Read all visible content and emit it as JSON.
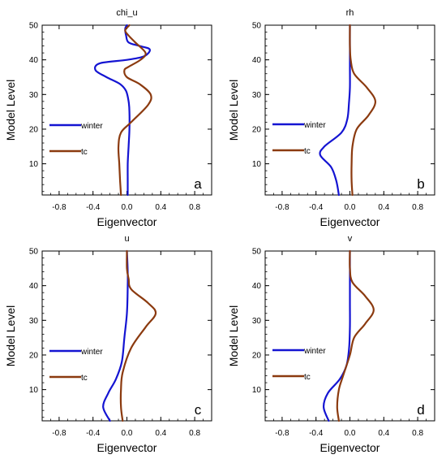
{
  "chart_data": [
    {
      "type": "line",
      "title": "chi_u",
      "panel_label": "a",
      "xlabel": "Eigenvector",
      "ylabel": "Model Level",
      "xlim": [
        -1.0,
        1.0
      ],
      "ylim": [
        1,
        50
      ],
      "xticks": [
        -0.8,
        -0.4,
        0.0,
        0.4,
        0.8
      ],
      "xticklabels": [
        "-0.8",
        "-0.4",
        "0.0",
        "0.4",
        "0.8"
      ],
      "yticks": [
        10,
        20,
        30,
        40,
        50
      ],
      "yticklabels": [
        "10",
        "20",
        "30",
        "40",
        "50"
      ],
      "legend_position": "left",
      "grid": false,
      "series": [
        {
          "name": "winter",
          "color": "#1414d2",
          "points": [
            [
              0.01,
              1
            ],
            [
              0.01,
              5
            ],
            [
              0.01,
              10
            ],
            [
              0.02,
              15
            ],
            [
              0.03,
              20
            ],
            [
              0.03,
              25
            ],
            [
              0.02,
              28
            ],
            [
              -0.01,
              31
            ],
            [
              -0.08,
              33
            ],
            [
              -0.24,
              35
            ],
            [
              -0.37,
              37
            ],
            [
              -0.32,
              39
            ],
            [
              0.0,
              40
            ],
            [
              0.2,
              41
            ],
            [
              0.27,
              43
            ],
            [
              0.15,
              44
            ],
            [
              0.02,
              45
            ],
            [
              -0.01,
              47
            ],
            [
              -0.02,
              49
            ],
            [
              0.0,
              50
            ]
          ]
        },
        {
          "name": "tc",
          "color": "#8b3a0f",
          "points": [
            [
              -0.07,
              1
            ],
            [
              -0.08,
              5
            ],
            [
              -0.09,
              10
            ],
            [
              -0.1,
              15
            ],
            [
              -0.07,
              19
            ],
            [
              0.05,
              22
            ],
            [
              0.25,
              27
            ],
            [
              0.28,
              30
            ],
            [
              0.15,
              33
            ],
            [
              0.0,
              35
            ],
            [
              -0.03,
              37
            ],
            [
              0.02,
              38
            ],
            [
              0.16,
              40
            ],
            [
              0.22,
              42
            ],
            [
              0.1,
              45
            ],
            [
              0.02,
              47
            ],
            [
              -0.02,
              48.5
            ],
            [
              0.03,
              50
            ]
          ]
        }
      ]
    },
    {
      "type": "line",
      "title": "rh",
      "panel_label": "b",
      "xlabel": "Eigenvector",
      "ylabel": "Model Level",
      "xlim": [
        -1.0,
        1.0
      ],
      "ylim": [
        1,
        50
      ],
      "xticks": [
        -0.8,
        -0.4,
        0.0,
        0.4,
        0.8
      ],
      "xticklabels": [
        "-0.8",
        "-0.4",
        "0.0",
        "0.4",
        "0.8"
      ],
      "yticks": [
        10,
        20,
        30,
        40,
        50
      ],
      "yticklabels": [
        "10",
        "20",
        "30",
        "40",
        "50"
      ],
      "legend_position": "left",
      "grid": false,
      "series": [
        {
          "name": "winter",
          "color": "#1414d2",
          "points": [
            [
              -0.13,
              1
            ],
            [
              -0.16,
              5
            ],
            [
              -0.22,
              9
            ],
            [
              -0.35,
              12.5
            ],
            [
              -0.3,
              15
            ],
            [
              -0.1,
              19
            ],
            [
              -0.03,
              23
            ],
            [
              -0.01,
              28
            ],
            [
              0.0,
              32
            ],
            [
              0.0,
              38
            ],
            [
              0.0,
              44
            ],
            [
              0.0,
              50
            ]
          ]
        },
        {
          "name": "tc",
          "color": "#8b3a0f",
          "points": [
            [
              0.03,
              1
            ],
            [
              0.02,
              5
            ],
            [
              0.02,
              10
            ],
            [
              0.03,
              15
            ],
            [
              0.08,
              20
            ],
            [
              0.22,
              24
            ],
            [
              0.3,
              28
            ],
            [
              0.2,
              32
            ],
            [
              0.05,
              36
            ],
            [
              0.01,
              40
            ],
            [
              0.0,
              44
            ],
            [
              0.0,
              50
            ]
          ]
        }
      ]
    },
    {
      "type": "line",
      "title": "u",
      "panel_label": "c",
      "xlabel": "Eigenvector",
      "ylabel": "Model Level",
      "xlim": [
        -1.0,
        1.0
      ],
      "ylim": [
        1,
        50
      ],
      "xticks": [
        -0.8,
        -0.4,
        0.0,
        0.4,
        0.8
      ],
      "xticklabels": [
        "-0.8",
        "-0.4",
        "0.0",
        "0.4",
        "0.8"
      ],
      "yticks": [
        10,
        20,
        30,
        40,
        50
      ],
      "yticklabels": [
        "10",
        "20",
        "30",
        "40",
        "50"
      ],
      "legend_position": "left",
      "grid": false,
      "series": [
        {
          "name": "winter",
          "color": "#1414d2",
          "points": [
            [
              -0.2,
              1
            ],
            [
              -0.28,
              5
            ],
            [
              -0.22,
              9
            ],
            [
              -0.13,
              13
            ],
            [
              -0.06,
              18
            ],
            [
              -0.03,
              25
            ],
            [
              0.0,
              32
            ],
            [
              0.01,
              40
            ],
            [
              0.01,
              44
            ],
            [
              0.0,
              50
            ]
          ]
        },
        {
          "name": "tc",
          "color": "#8b3a0f",
          "points": [
            [
              -0.05,
              1
            ],
            [
              -0.07,
              5
            ],
            [
              -0.07,
              10
            ],
            [
              -0.05,
              15
            ],
            [
              0.05,
              22
            ],
            [
              0.22,
              28
            ],
            [
              0.34,
              32
            ],
            [
              0.25,
              35
            ],
            [
              0.05,
              39
            ],
            [
              0.02,
              42
            ],
            [
              0.0,
              45
            ],
            [
              0.0,
              50
            ]
          ]
        }
      ]
    },
    {
      "type": "line",
      "title": "v",
      "panel_label": "d",
      "xlabel": "Eigenvector",
      "ylabel": "Model Level",
      "xlim": [
        -1.0,
        1.0
      ],
      "ylim": [
        1,
        50
      ],
      "xticks": [
        -0.8,
        -0.4,
        0.0,
        0.4,
        0.8
      ],
      "xticklabels": [
        "-0.8",
        "-0.4",
        "0.0",
        "0.4",
        "0.8"
      ],
      "yticks": [
        10,
        20,
        30,
        40,
        50
      ],
      "yticklabels": [
        "10",
        "20",
        "30",
        "40",
        "50"
      ],
      "legend_position": "left",
      "grid": false,
      "series": [
        {
          "name": "winter",
          "color": "#1414d2",
          "points": [
            [
              -0.25,
              1
            ],
            [
              -0.31,
              5
            ],
            [
              -0.26,
              9
            ],
            [
              -0.12,
              13
            ],
            [
              -0.04,
              17
            ],
            [
              -0.01,
              22
            ],
            [
              0.0,
              28
            ],
            [
              0.0,
              35
            ],
            [
              0.0,
              42
            ],
            [
              0.0,
              50
            ]
          ]
        },
        {
          "name": "tc",
          "color": "#8b3a0f",
          "points": [
            [
              -0.13,
              1
            ],
            [
              -0.15,
              5
            ],
            [
              -0.13,
              10
            ],
            [
              -0.08,
              14
            ],
            [
              0.0,
              20
            ],
            [
              0.05,
              25
            ],
            [
              0.18,
              29
            ],
            [
              0.28,
              33
            ],
            [
              0.18,
              37
            ],
            [
              0.03,
              41
            ],
            [
              0.0,
              45
            ],
            [
              0.0,
              50
            ]
          ]
        }
      ]
    }
  ]
}
